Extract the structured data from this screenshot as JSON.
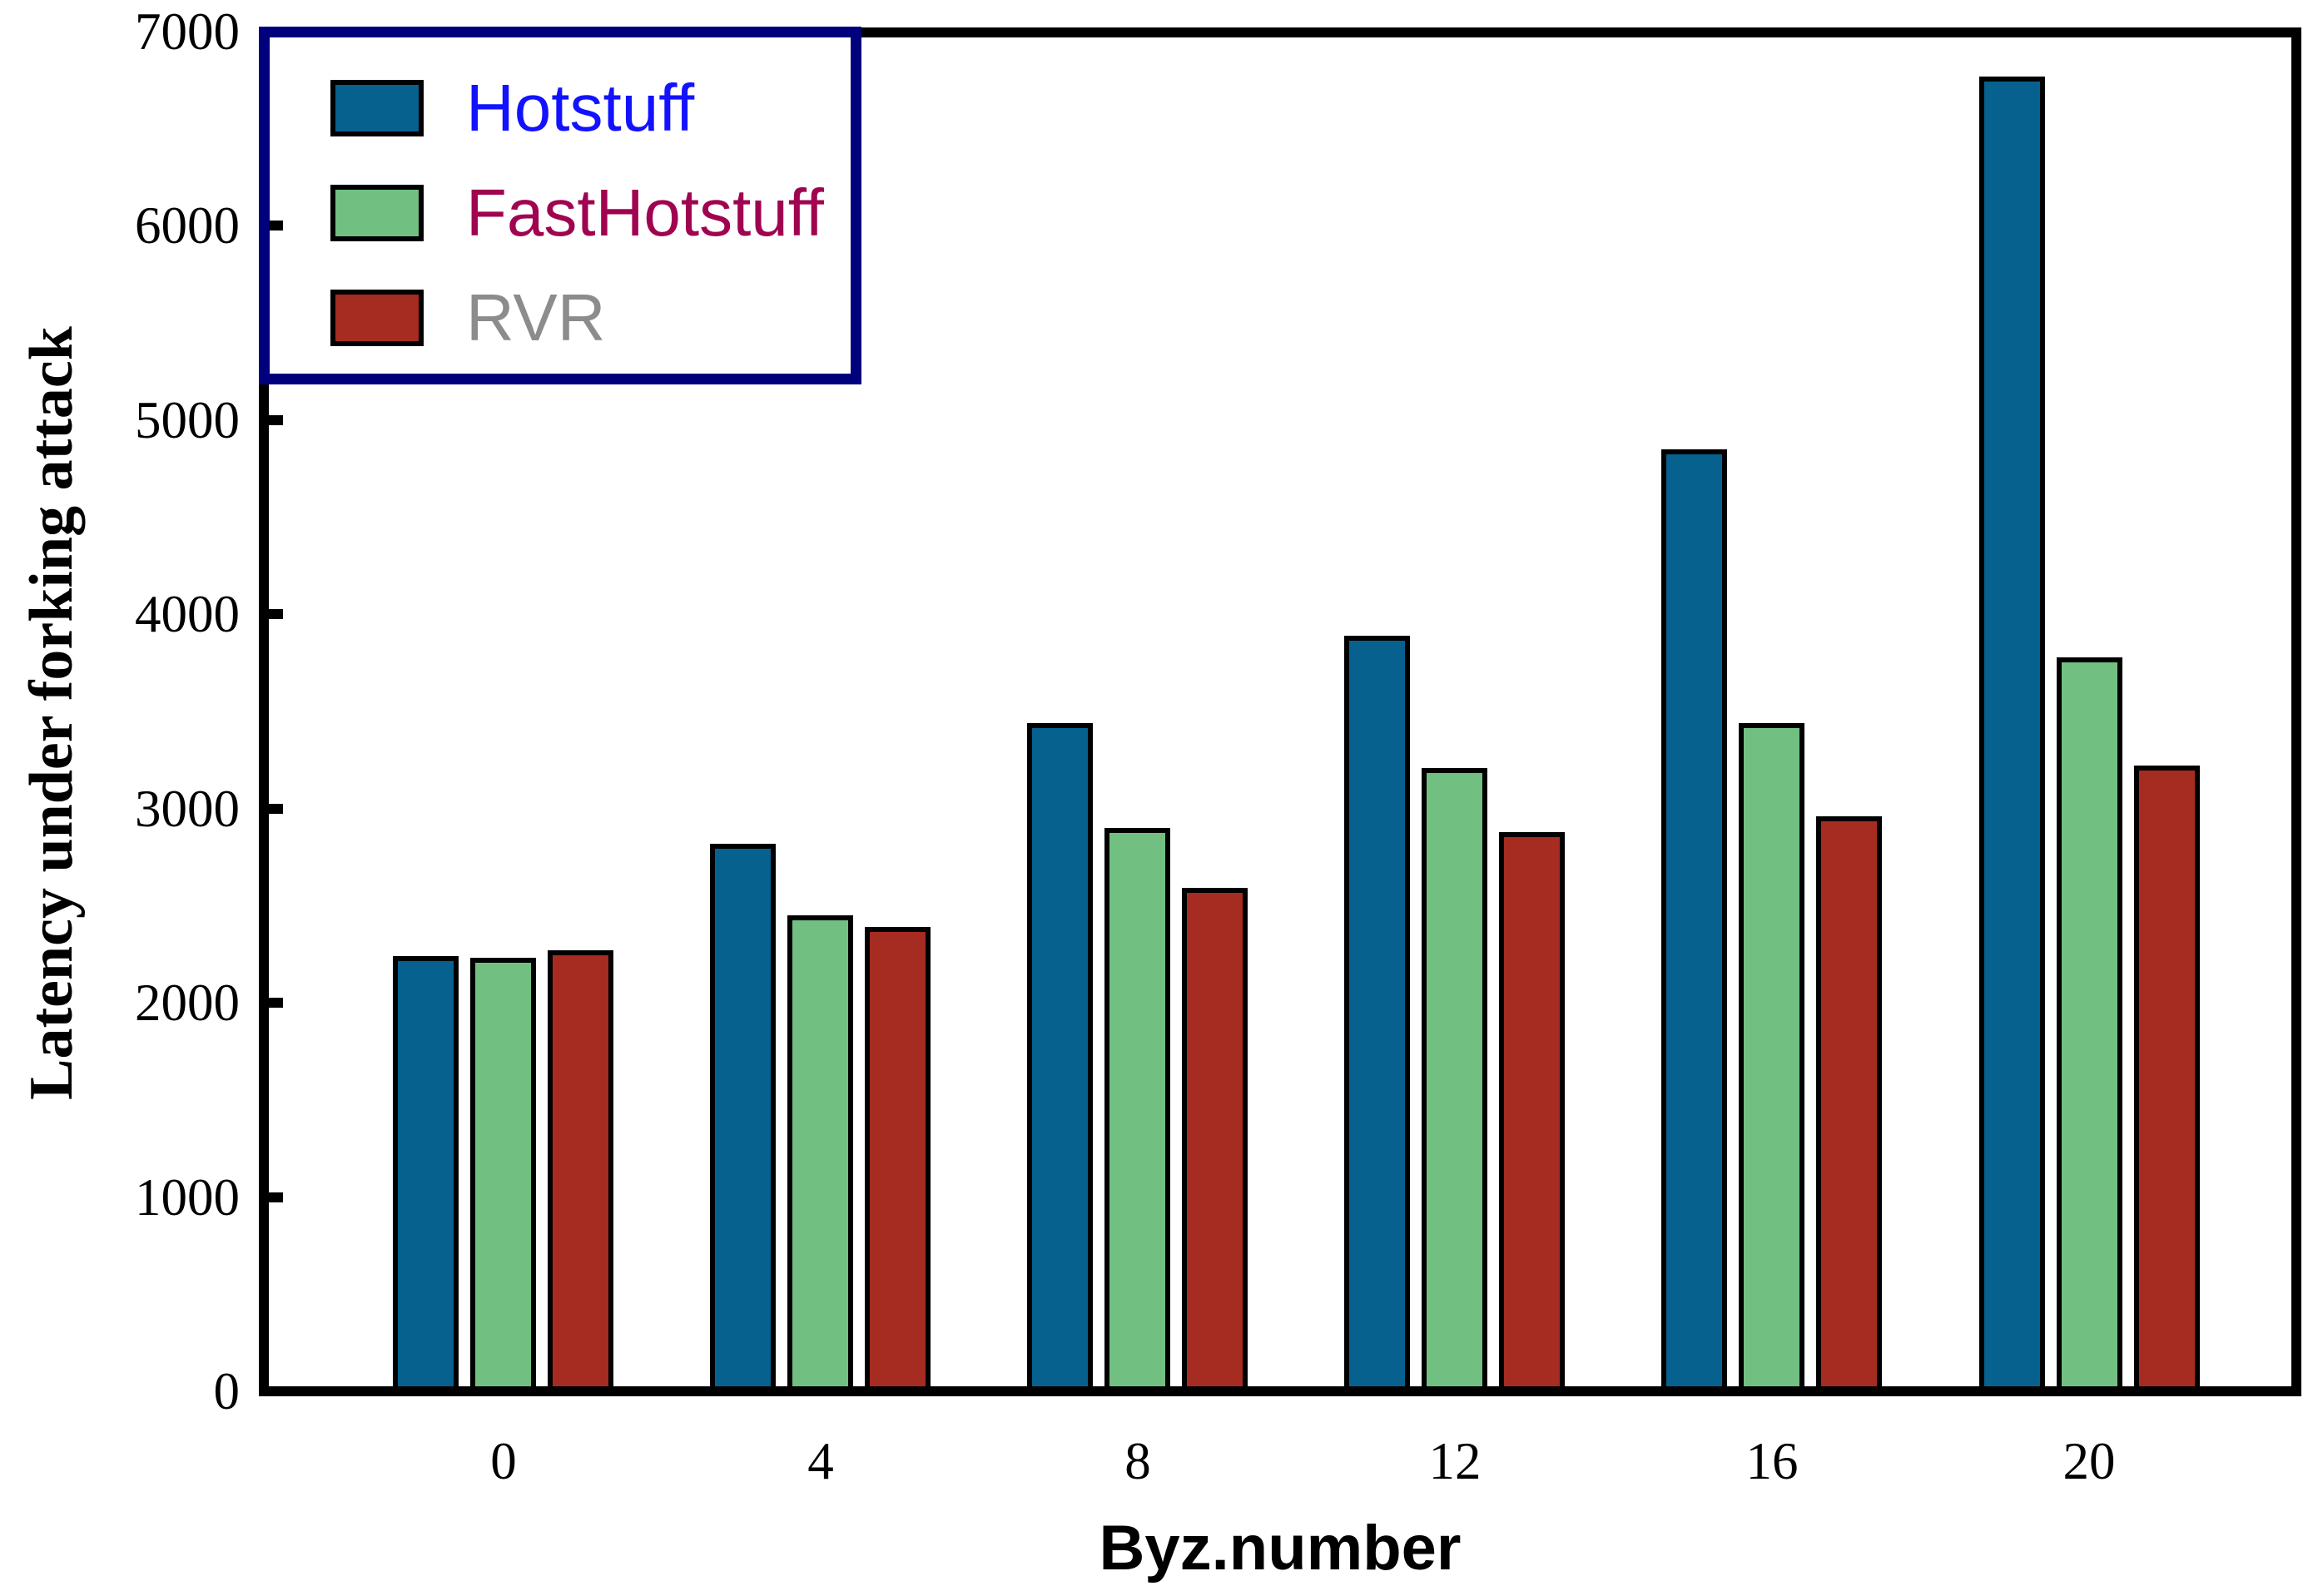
{
  "chart_data": {
    "type": "bar",
    "title": "",
    "xlabel": "Byz.number",
    "ylabel": "Latency under forking attack",
    "categories": [
      "0",
      "4",
      "8",
      "12",
      "16",
      "20"
    ],
    "series": [
      {
        "name": "Hotstuff",
        "bar_color": "#06618f",
        "label_color": "#1212ff",
        "values": [
          2240,
          2820,
          3440,
          3890,
          4850,
          6770
        ]
      },
      {
        "name": "FastHotstuff",
        "bar_color": "#72bf82",
        "label_color": "#a00450",
        "values": [
          2230,
          2450,
          2900,
          3210,
          3440,
          3780
        ]
      },
      {
        "name": "RVR",
        "bar_color": "#a62b20",
        "label_color": "#8c8c8c",
        "values": [
          2270,
          2390,
          2590,
          2880,
          2960,
          3220
        ]
      }
    ],
    "ylim": [
      0,
      7000
    ],
    "yticks": [
      0,
      1000,
      2000,
      3000,
      4000,
      5000,
      6000,
      7000
    ],
    "grid": false,
    "legend_position": "upper left",
    "bar_edge_color": "#000000",
    "axis_color": "#000000",
    "legend_border_color": "#00007d",
    "background_color": "#ffffff"
  }
}
